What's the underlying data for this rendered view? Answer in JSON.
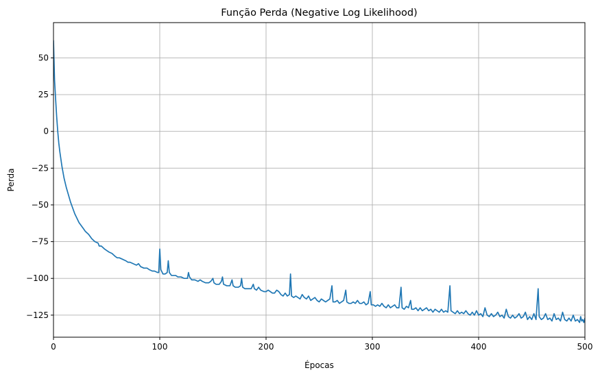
{
  "chart_data": {
    "type": "line",
    "title": "Função Perda (Negative Log Likelihood)",
    "xlabel": "Épocas",
    "ylabel": "Perda",
    "xlim": [
      0,
      500
    ],
    "ylim": [
      -140,
      74
    ],
    "xticks": [
      0,
      100,
      200,
      300,
      400,
      500
    ],
    "yticks": [
      -125,
      -100,
      -75,
      -50,
      -25,
      0,
      25,
      50
    ],
    "grid": true,
    "line_color": "#1f77b4",
    "series": [
      {
        "points": [
          [
            0,
            62
          ],
          [
            1,
            35
          ],
          [
            2,
            22
          ],
          [
            3,
            10
          ],
          [
            4,
            0
          ],
          [
            5,
            -8
          ],
          [
            6,
            -14
          ],
          [
            7,
            -19
          ],
          [
            8,
            -24
          ],
          [
            9,
            -28
          ],
          [
            10,
            -32
          ],
          [
            12,
            -38
          ],
          [
            14,
            -43
          ],
          [
            16,
            -48
          ],
          [
            18,
            -52
          ],
          [
            20,
            -56
          ],
          [
            22,
            -59
          ],
          [
            24,
            -62
          ],
          [
            26,
            -64
          ],
          [
            28,
            -66
          ],
          [
            30,
            -68
          ],
          [
            33,
            -70
          ],
          [
            36,
            -73
          ],
          [
            39,
            -75
          ],
          [
            42,
            -76
          ],
          [
            43,
            -78
          ],
          [
            45,
            -78
          ],
          [
            48,
            -80
          ],
          [
            50,
            -81
          ],
          [
            52,
            -82
          ],
          [
            55,
            -83
          ],
          [
            58,
            -85
          ],
          [
            60,
            -86
          ],
          [
            62,
            -86
          ],
          [
            65,
            -87
          ],
          [
            68,
            -88
          ],
          [
            70,
            -89
          ],
          [
            72,
            -89
          ],
          [
            75,
            -90
          ],
          [
            78,
            -91
          ],
          [
            80,
            -90
          ],
          [
            82,
            -92
          ],
          [
            85,
            -93
          ],
          [
            88,
            -93
          ],
          [
            90,
            -94
          ],
          [
            93,
            -95
          ],
          [
            95,
            -95
          ],
          [
            98,
            -96
          ],
          [
            99,
            -96
          ],
          [
            100,
            -80
          ],
          [
            101,
            -94
          ],
          [
            103,
            -97
          ],
          [
            105,
            -97
          ],
          [
            107,
            -96
          ],
          [
            108,
            -88
          ],
          [
            109,
            -96
          ],
          [
            111,
            -98
          ],
          [
            113,
            -98
          ],
          [
            115,
            -98
          ],
          [
            117,
            -99
          ],
          [
            120,
            -99
          ],
          [
            123,
            -100
          ],
          [
            126,
            -100
          ],
          [
            127,
            -96
          ],
          [
            128,
            -99
          ],
          [
            130,
            -101
          ],
          [
            133,
            -101
          ],
          [
            136,
            -102
          ],
          [
            138,
            -101
          ],
          [
            140,
            -102
          ],
          [
            143,
            -103
          ],
          [
            146,
            -103
          ],
          [
            148,
            -102
          ],
          [
            150,
            -100
          ],
          [
            151,
            -103
          ],
          [
            153,
            -104
          ],
          [
            156,
            -104
          ],
          [
            158,
            -102
          ],
          [
            159,
            -99
          ],
          [
            160,
            -104
          ],
          [
            163,
            -105
          ],
          [
            166,
            -105
          ],
          [
            168,
            -101
          ],
          [
            169,
            -105
          ],
          [
            171,
            -106
          ],
          [
            174,
            -106
          ],
          [
            176,
            -105
          ],
          [
            177,
            -100
          ],
          [
            178,
            -106
          ],
          [
            180,
            -107
          ],
          [
            183,
            -107
          ],
          [
            186,
            -107
          ],
          [
            188,
            -104
          ],
          [
            189,
            -107
          ],
          [
            191,
            -108
          ],
          [
            193,
            -106
          ],
          [
            195,
            -108
          ],
          [
            198,
            -109
          ],
          [
            200,
            -109
          ],
          [
            202,
            -108
          ],
          [
            204,
            -109
          ],
          [
            206,
            -110
          ],
          [
            208,
            -110
          ],
          [
            210,
            -108
          ],
          [
            212,
            -109
          ],
          [
            214,
            -111
          ],
          [
            216,
            -112
          ],
          [
            218,
            -110
          ],
          [
            220,
            -112
          ],
          [
            222,
            -111
          ],
          [
            223,
            -97
          ],
          [
            224,
            -112
          ],
          [
            226,
            -113
          ],
          [
            228,
            -112
          ],
          [
            230,
            -113
          ],
          [
            232,
            -114
          ],
          [
            234,
            -111
          ],
          [
            236,
            -113
          ],
          [
            238,
            -114
          ],
          [
            240,
            -112
          ],
          [
            242,
            -115
          ],
          [
            244,
            -114
          ],
          [
            246,
            -113
          ],
          [
            248,
            -115
          ],
          [
            250,
            -116
          ],
          [
            252,
            -114
          ],
          [
            254,
            -115
          ],
          [
            256,
            -116
          ],
          [
            258,
            -115
          ],
          [
            260,
            -114
          ],
          [
            262,
            -105
          ],
          [
            263,
            -116
          ],
          [
            265,
            -116
          ],
          [
            267,
            -115
          ],
          [
            269,
            -117
          ],
          [
            271,
            -116
          ],
          [
            273,
            -115
          ],
          [
            275,
            -108
          ],
          [
            276,
            -116
          ],
          [
            278,
            -117
          ],
          [
            280,
            -117
          ],
          [
            282,
            -116
          ],
          [
            284,
            -117
          ],
          [
            286,
            -115
          ],
          [
            288,
            -117
          ],
          [
            290,
            -117
          ],
          [
            292,
            -116
          ],
          [
            294,
            -118
          ],
          [
            296,
            -117
          ],
          [
            298,
            -109
          ],
          [
            299,
            -118
          ],
          [
            301,
            -118
          ],
          [
            303,
            -119
          ],
          [
            305,
            -118
          ],
          [
            307,
            -119
          ],
          [
            309,
            -117
          ],
          [
            311,
            -119
          ],
          [
            313,
            -120
          ],
          [
            315,
            -118
          ],
          [
            317,
            -120
          ],
          [
            319,
            -119
          ],
          [
            321,
            -118
          ],
          [
            323,
            -120
          ],
          [
            325,
            -120
          ],
          [
            327,
            -106
          ],
          [
            328,
            -120
          ],
          [
            330,
            -121
          ],
          [
            332,
            -119
          ],
          [
            334,
            -120
          ],
          [
            336,
            -115
          ],
          [
            337,
            -121
          ],
          [
            339,
            -121
          ],
          [
            341,
            -120
          ],
          [
            343,
            -122
          ],
          [
            345,
            -120
          ],
          [
            347,
            -122
          ],
          [
            349,
            -121
          ],
          [
            351,
            -120
          ],
          [
            353,
            -122
          ],
          [
            355,
            -121
          ],
          [
            357,
            -123
          ],
          [
            359,
            -121
          ],
          [
            361,
            -122
          ],
          [
            363,
            -123
          ],
          [
            365,
            -121
          ],
          [
            367,
            -123
          ],
          [
            369,
            -122
          ],
          [
            371,
            -123
          ],
          [
            373,
            -105
          ],
          [
            374,
            -122
          ],
          [
            376,
            -123
          ],
          [
            378,
            -124
          ],
          [
            380,
            -122
          ],
          [
            382,
            -124
          ],
          [
            384,
            -123
          ],
          [
            386,
            -124
          ],
          [
            388,
            -122
          ],
          [
            390,
            -124
          ],
          [
            392,
            -125
          ],
          [
            394,
            -123
          ],
          [
            396,
            -125
          ],
          [
            398,
            -122
          ],
          [
            400,
            -125
          ],
          [
            402,
            -124
          ],
          [
            404,
            -126
          ],
          [
            406,
            -120
          ],
          [
            408,
            -125
          ],
          [
            410,
            -126
          ],
          [
            412,
            -124
          ],
          [
            414,
            -126
          ],
          [
            416,
            -125
          ],
          [
            418,
            -123
          ],
          [
            420,
            -126
          ],
          [
            422,
            -125
          ],
          [
            424,
            -127
          ],
          [
            426,
            -121
          ],
          [
            428,
            -126
          ],
          [
            430,
            -127
          ],
          [
            432,
            -125
          ],
          [
            434,
            -127
          ],
          [
            436,
            -126
          ],
          [
            438,
            -124
          ],
          [
            440,
            -127
          ],
          [
            442,
            -126
          ],
          [
            444,
            -123
          ],
          [
            446,
            -128
          ],
          [
            448,
            -126
          ],
          [
            450,
            -128
          ],
          [
            452,
            -124
          ],
          [
            454,
            -128
          ],
          [
            456,
            -107
          ],
          [
            457,
            -126
          ],
          [
            459,
            -128
          ],
          [
            461,
            -127
          ],
          [
            463,
            -124
          ],
          [
            465,
            -128
          ],
          [
            467,
            -127
          ],
          [
            469,
            -129
          ],
          [
            471,
            -124
          ],
          [
            473,
            -128
          ],
          [
            475,
            -127
          ],
          [
            477,
            -129
          ],
          [
            479,
            -123
          ],
          [
            481,
            -128
          ],
          [
            483,
            -129
          ],
          [
            485,
            -127
          ],
          [
            487,
            -129
          ],
          [
            489,
            -125
          ],
          [
            491,
            -129
          ],
          [
            493,
            -128
          ],
          [
            495,
            -130
          ],
          [
            496,
            -126
          ],
          [
            497,
            -129
          ],
          [
            498,
            -128
          ],
          [
            499,
            -130
          ],
          [
            500,
            -127
          ]
        ]
      }
    ]
  }
}
